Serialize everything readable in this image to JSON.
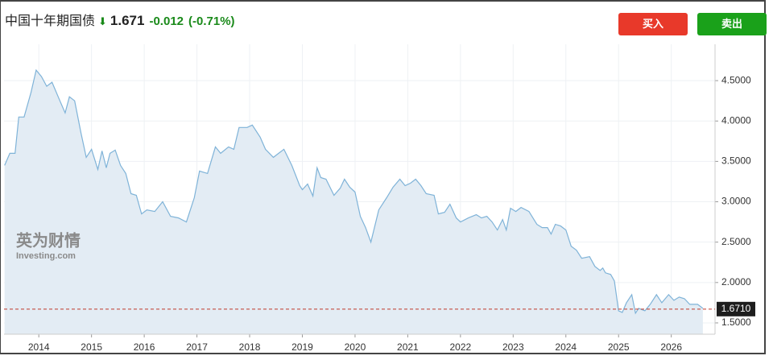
{
  "header": {
    "title": "中国十年期国债",
    "price": 1.671,
    "change": "-0.012",
    "change_pct": "(-0.71%)"
  },
  "buttons": {
    "buy": "买入",
    "sell": "卖出"
  },
  "watermark": {
    "cn": "英为财情",
    "en": "Investing.com"
  },
  "chart_data": {
    "type": "area",
    "color": "#7fb3d8",
    "fill": "#e3ecf4",
    "grid": true,
    "x": [
      2013.35,
      2013.45,
      2013.55,
      2013.62,
      2013.72,
      2013.85,
      2013.95,
      2014.05,
      2014.15,
      2014.25,
      2014.4,
      2014.5,
      2014.58,
      2014.68,
      2014.8,
      2014.9,
      2015.0,
      2015.12,
      2015.2,
      2015.28,
      2015.35,
      2015.45,
      2015.55,
      2015.65,
      2015.75,
      2015.85,
      2015.95,
      2016.05,
      2016.2,
      2016.35,
      2016.5,
      2016.65,
      2016.8,
      2016.95,
      2017.05,
      2017.2,
      2017.35,
      2017.45,
      2017.6,
      2017.7,
      2017.8,
      2017.95,
      2018.05,
      2018.2,
      2018.3,
      2018.45,
      2018.55,
      2018.65,
      2018.8,
      2018.95,
      2019.0,
      2019.1,
      2019.2,
      2019.28,
      2019.35,
      2019.45,
      2019.6,
      2019.72,
      2019.8,
      2019.9,
      2020.0,
      2020.1,
      2020.2,
      2020.3,
      2020.45,
      2020.6,
      2020.72,
      2020.85,
      2020.95,
      2021.05,
      2021.15,
      2021.25,
      2021.35,
      2021.5,
      2021.58,
      2021.7,
      2021.8,
      2021.92,
      2022.0,
      2022.15,
      2022.3,
      2022.4,
      2022.5,
      2022.6,
      2022.7,
      2022.8,
      2022.87,
      2022.95,
      2023.05,
      2023.15,
      2023.3,
      2023.45,
      2023.55,
      2023.65,
      2023.72,
      2023.8,
      2023.9,
      2024.0,
      2024.1,
      2024.2,
      2024.3,
      2024.45,
      2024.55,
      2024.65,
      2024.7,
      2024.75,
      2024.85,
      2024.92,
      2025.0,
      2025.07,
      2025.15,
      2025.25,
      2025.32,
      2025.38,
      2025.5,
      2025.6,
      2025.72,
      2025.82,
      2025.95,
      2026.05,
      2026.15,
      2026.25,
      2026.35,
      2026.5,
      2026.6
    ],
    "values": [
      3.45,
      3.6,
      3.6,
      4.05,
      4.05,
      4.35,
      4.63,
      4.55,
      4.43,
      4.48,
      4.25,
      4.1,
      4.3,
      4.25,
      3.85,
      3.55,
      3.65,
      3.4,
      3.63,
      3.42,
      3.6,
      3.64,
      3.45,
      3.35,
      3.1,
      3.08,
      2.85,
      2.9,
      2.88,
      3.0,
      2.82,
      2.8,
      2.75,
      3.05,
      3.38,
      3.35,
      3.68,
      3.6,
      3.68,
      3.65,
      3.92,
      3.92,
      3.95,
      3.8,
      3.65,
      3.55,
      3.6,
      3.65,
      3.45,
      3.2,
      3.15,
      3.22,
      3.07,
      3.42,
      3.3,
      3.28,
      3.08,
      3.17,
      3.28,
      3.18,
      3.12,
      2.82,
      2.68,
      2.5,
      2.9,
      3.05,
      3.18,
      3.28,
      3.2,
      3.23,
      3.28,
      3.2,
      3.1,
      3.08,
      2.85,
      2.87,
      2.97,
      2.8,
      2.75,
      2.8,
      2.84,
      2.8,
      2.82,
      2.75,
      2.65,
      2.78,
      2.65,
      2.92,
      2.88,
      2.93,
      2.88,
      2.72,
      2.68,
      2.68,
      2.6,
      2.72,
      2.7,
      2.65,
      2.45,
      2.4,
      2.3,
      2.32,
      2.2,
      2.15,
      2.18,
      2.12,
      2.1,
      2.02,
      1.65,
      1.63,
      1.75,
      1.85,
      1.62,
      1.68,
      1.65,
      1.73,
      1.85,
      1.75,
      1.85,
      1.78,
      1.82,
      1.8,
      1.73,
      1.73,
      1.68
    ],
    "xlim": [
      2013.34,
      2026.83
    ],
    "xticks": [
      2014,
      2015,
      2016,
      2017,
      2018,
      2019,
      2020,
      2021,
      2022,
      2023,
      2024,
      2025,
      2026
    ],
    "ylim": [
      1.36,
      4.95
    ],
    "yticks": [
      {
        "value": 1.5,
        "label": "1.5000"
      },
      {
        "value": 2,
        "label": "2.0000"
      },
      {
        "value": 2.5,
        "label": "2.5000"
      },
      {
        "value": 3,
        "label": "3.0000"
      },
      {
        "value": 3.5,
        "label": "3.5000"
      },
      {
        "value": 4,
        "label": "4.0000"
      },
      {
        "value": 4.5,
        "label": "4.5000"
      }
    ],
    "reference_line": {
      "value": 1.671,
      "label": "1.6710",
      "color": "#c0392b"
    }
  }
}
